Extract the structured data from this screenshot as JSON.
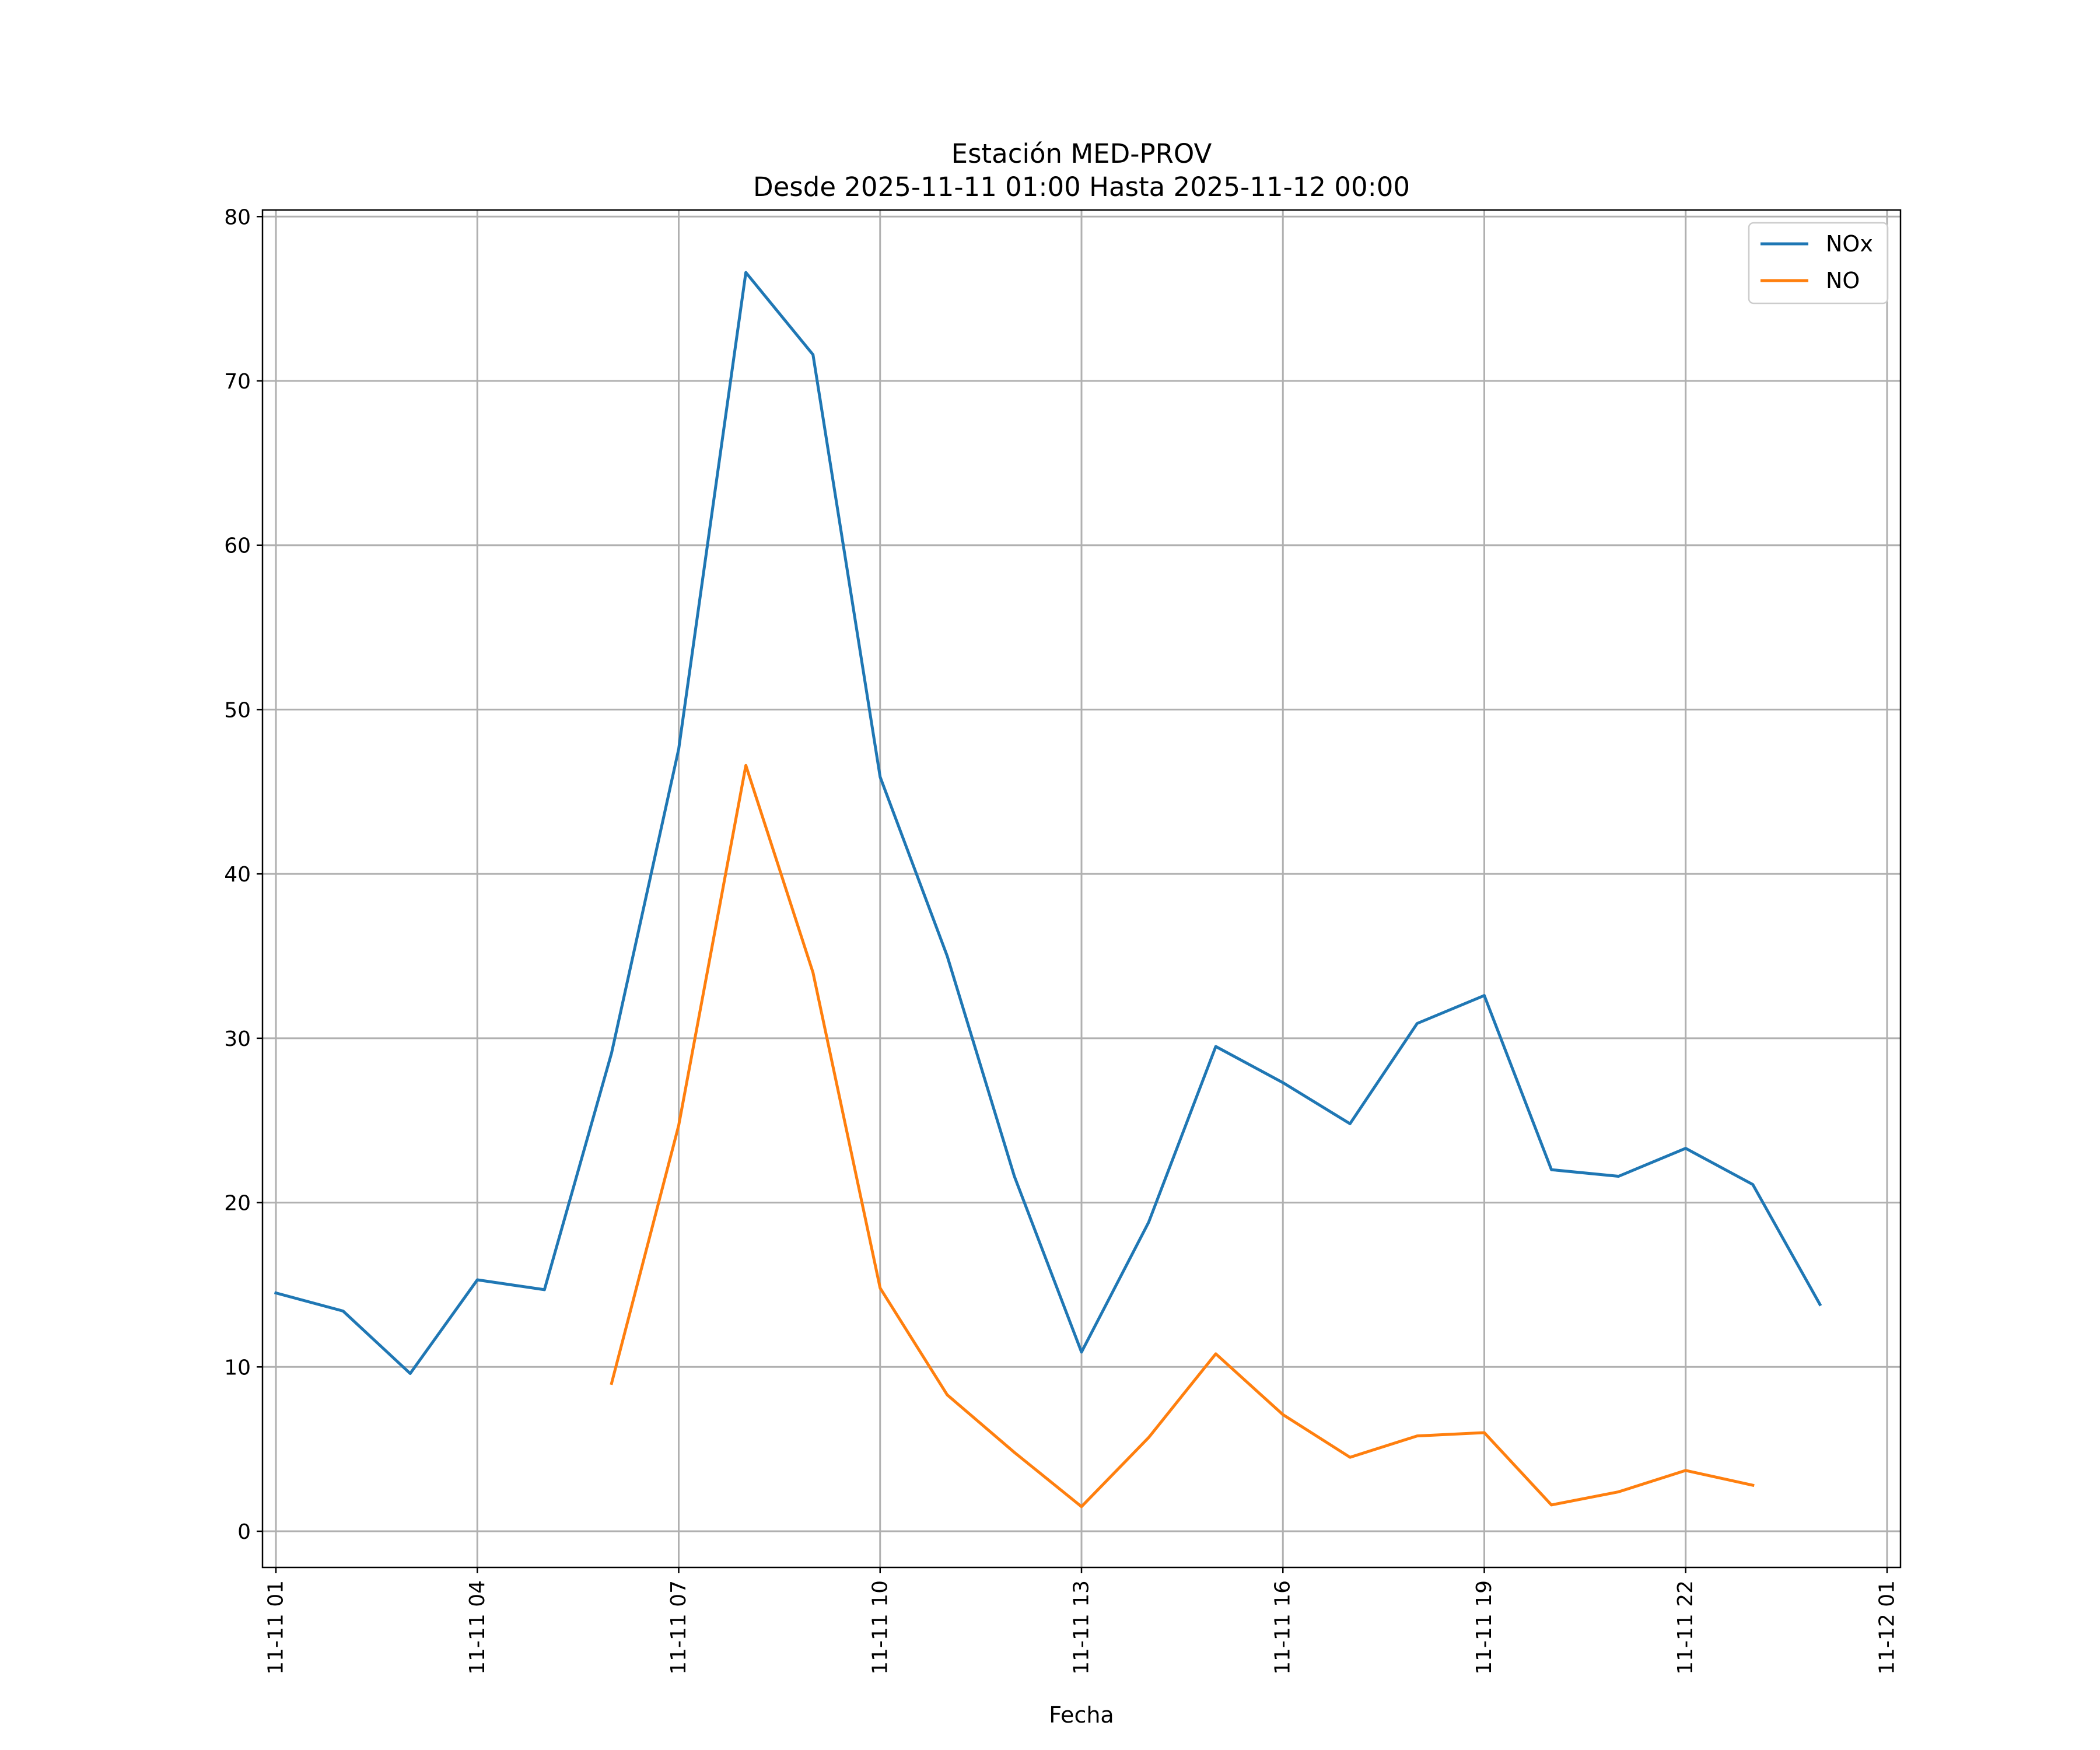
{
  "chart_data": {
    "type": "line",
    "title": "Estación MED-PROV",
    "subtitle": "Desde 2025-11-11 01:00 Hasta 2025-11-12 00:00",
    "xlabel": "Fecha",
    "ylabel": "",
    "ylim": [
      -2.2,
      80.4
    ],
    "xlim": [
      -0.2,
      24.2
    ],
    "grid": true,
    "legend_position": "top-right",
    "y_ticks": [
      0,
      10,
      20,
      30,
      40,
      50,
      60,
      70,
      80
    ],
    "y_tick_labels": [
      "0",
      "10",
      "20",
      "30",
      "40",
      "50",
      "60",
      "70",
      "80"
    ],
    "x_ticks": [
      0,
      3,
      6,
      9,
      12,
      15,
      18,
      21,
      24
    ],
    "x_tick_labels": [
      "11-11 01",
      "11-11 04",
      "11-11 07",
      "11-11 10",
      "11-11 13",
      "11-11 16",
      "11-11 19",
      "11-11 22",
      "11-12 01"
    ],
    "x_hours": [
      0,
      1,
      2,
      3,
      4,
      5,
      6,
      7,
      8,
      9,
      10,
      11,
      12,
      13,
      14,
      15,
      16,
      17,
      18,
      19,
      20,
      21,
      22,
      23
    ],
    "series": [
      {
        "name": "NOx",
        "color": "#1f77b4",
        "values": [
          14.5,
          13.4,
          9.6,
          15.3,
          14.7,
          29.1,
          47.6,
          76.6,
          71.6,
          45.9,
          35.0,
          21.6,
          10.9,
          18.8,
          29.5,
          27.3,
          24.8,
          30.9,
          32.6,
          22.0,
          21.6,
          23.3,
          21.1,
          13.8
        ]
      },
      {
        "name": "NO",
        "color": "#ff7f0e",
        "values": [
          null,
          null,
          null,
          null,
          null,
          9.0,
          24.7,
          46.6,
          34.0,
          14.8,
          8.3,
          4.8,
          1.5,
          5.7,
          10.8,
          7.1,
          4.5,
          5.8,
          6.0,
          1.6,
          2.4,
          3.7,
          2.8,
          null
        ]
      }
    ]
  }
}
